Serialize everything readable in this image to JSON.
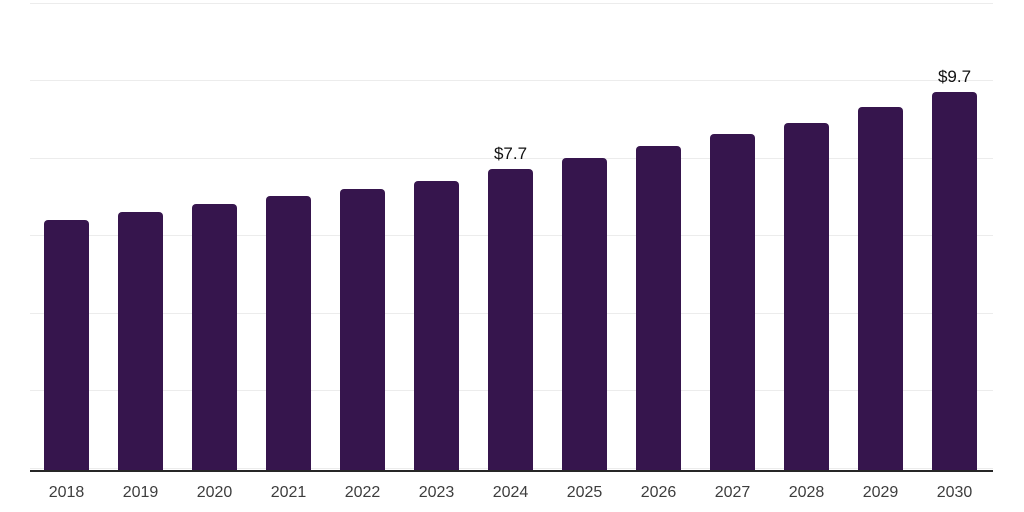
{
  "chart_data": {
    "type": "bar",
    "categories": [
      "2018",
      "2019",
      "2020",
      "2021",
      "2022",
      "2023",
      "2024",
      "2025",
      "2026",
      "2027",
      "2028",
      "2029",
      "2030"
    ],
    "values": [
      6.4,
      6.6,
      6.8,
      7.0,
      7.2,
      7.4,
      7.7,
      8.0,
      8.3,
      8.6,
      8.9,
      9.3,
      9.7
    ],
    "point_labels": [
      "",
      "",
      "",
      "",
      "",
      "",
      "$7.7",
      "",
      "",
      "",
      "",
      "",
      "$9.7"
    ],
    "ylim": [
      0,
      12.1
    ],
    "y_gridlines": [
      0,
      2,
      4,
      6,
      8,
      10,
      12
    ],
    "grid": "horizontal",
    "legend": "none",
    "y_axis_labels_visible": false,
    "colors": {
      "bar": "#36154d",
      "gridline": "#ececec",
      "axis_line": "#262626",
      "tick_label": "#3d3d3d",
      "data_label": "#111111",
      "background": "#ffffff"
    }
  }
}
